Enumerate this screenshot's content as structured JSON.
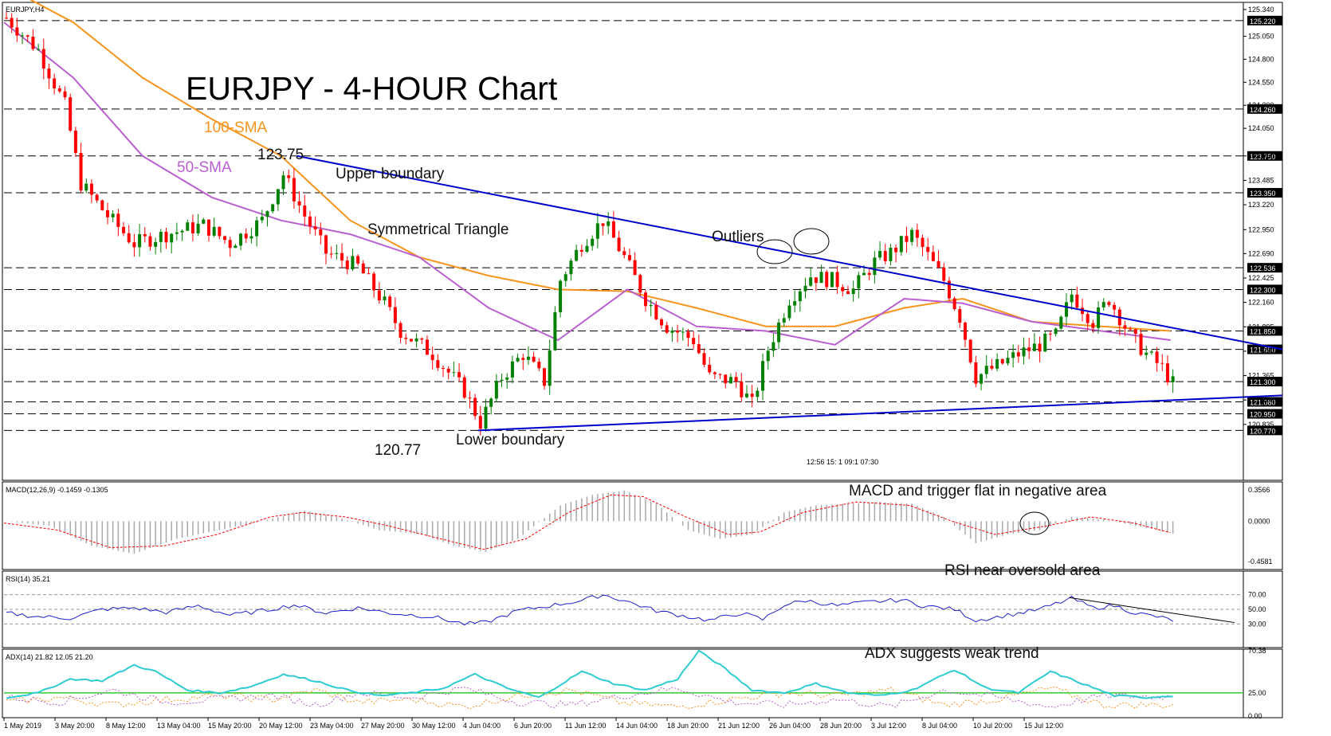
{
  "chart_data": {
    "type": "candlestick",
    "symbol_label": "EURJPY,H4",
    "title": "EURJPY - 4-HOUR Chart",
    "price_axis": {
      "ylim": [
        120.6,
        125.4
      ],
      "ticks": [
        "125.340",
        "125.050",
        "124.800",
        "124.550",
        "124.300",
        "124.050",
        "123.750",
        "123.485",
        "123.220",
        "122.950",
        "122.690",
        "122.425",
        "122.160",
        "121.895",
        "121.630",
        "121.365",
        "121.100",
        "120.835"
      ],
      "levels": [
        125.22,
        124.26,
        123.75,
        123.35,
        122.536,
        122.3,
        121.85,
        121.65,
        121.3,
        121.08,
        120.95,
        120.77
      ],
      "level_labels": [
        "125.220",
        "124.260",
        "123.750",
        "123.350",
        "122.536",
        "122.300",
        "121.850",
        "121.650",
        "121.300",
        "121.080",
        "120.950",
        "120.770"
      ]
    },
    "x_labels": [
      "1 May 2019",
      "3 May 20:00",
      "8 May 12:00",
      "13 May 04:00",
      "15 May 20:00",
      "20 May 12:00",
      "23 May 04:00",
      "27 May 20:00",
      "30 May 12:00",
      "4 Jun 04:00",
      "6 Jun 20:00",
      "11 Jun 12:00",
      "14 Jun 04:00",
      "18 Jun 20:00",
      "21 Jun 12:00",
      "26 Jun 04:00",
      "28 Jun 20:00",
      "3 Jul 12:00",
      "8 Jul 04:00",
      "10 Jul 20:00",
      "15 Jul 12:00"
    ],
    "price_path": [
      [
        0,
        125.25
      ],
      [
        6,
        124.9
      ],
      [
        11,
        124.3
      ],
      [
        14,
        123.45
      ],
      [
        19,
        123.1
      ],
      [
        24,
        122.8
      ],
      [
        30,
        122.9
      ],
      [
        37,
        123.0
      ],
      [
        42,
        122.8
      ],
      [
        48,
        123.05
      ],
      [
        52,
        123.55
      ],
      [
        56,
        123.1
      ],
      [
        60,
        122.7
      ],
      [
        66,
        122.55
      ],
      [
        71,
        122.15
      ],
      [
        74,
        121.85
      ],
      [
        80,
        121.6
      ],
      [
        86,
        121.2
      ],
      [
        89,
        120.85
      ],
      [
        93,
        121.35
      ],
      [
        97,
        121.6
      ],
      [
        101,
        121.3
      ],
      [
        104,
        122.4
      ],
      [
        108,
        122.8
      ],
      [
        112,
        123.05
      ],
      [
        116,
        122.65
      ],
      [
        120,
        122.2
      ],
      [
        124,
        121.9
      ],
      [
        129,
        121.75
      ],
      [
        132,
        121.35
      ],
      [
        137,
        121.3
      ],
      [
        140,
        121.05
      ],
      [
        143,
        121.65
      ],
      [
        147,
        122.2
      ],
      [
        151,
        122.45
      ],
      [
        155,
        122.4
      ],
      [
        159,
        122.3
      ],
      [
        163,
        122.6
      ],
      [
        166,
        122.7
      ],
      [
        170,
        122.9
      ],
      [
        172,
        122.75
      ],
      [
        176,
        122.4
      ],
      [
        179,
        122.0
      ],
      [
        182,
        121.35
      ],
      [
        187,
        121.5
      ],
      [
        190,
        121.6
      ],
      [
        194,
        121.7
      ],
      [
        197,
        121.8
      ],
      [
        200,
        122.25
      ],
      [
        204,
        121.95
      ],
      [
        207,
        122.2
      ],
      [
        211,
        121.8
      ],
      [
        214,
        121.6
      ],
      [
        217,
        121.45
      ],
      [
        219,
        121.28
      ]
    ],
    "trendlines": {
      "upper_boundary": {
        "from": [
          55,
          123.75
        ],
        "to": [
          240,
          121.65
        ]
      },
      "lower_boundary": {
        "from": [
          89,
          120.77
        ],
        "to": [
          240,
          121.15
        ]
      }
    },
    "moving_averages": {
      "sma100": [
        [
          0,
          125.6
        ],
        [
          13,
          125.2
        ],
        [
          26,
          124.6
        ],
        [
          39,
          124.15
        ],
        [
          52,
          123.75
        ],
        [
          65,
          123.05
        ],
        [
          78,
          122.65
        ],
        [
          91,
          122.45
        ],
        [
          104,
          122.3
        ],
        [
          117,
          122.28
        ],
        [
          130,
          122.1
        ],
        [
          143,
          121.9
        ],
        [
          156,
          121.9
        ],
        [
          169,
          122.1
        ],
        [
          180,
          122.2
        ],
        [
          193,
          121.95
        ],
        [
          206,
          121.9
        ],
        [
          219,
          121.85
        ]
      ],
      "sma50": [
        [
          0,
          125.2
        ],
        [
          13,
          124.6
        ],
        [
          26,
          123.75
        ],
        [
          39,
          123.3
        ],
        [
          52,
          123.05
        ],
        [
          65,
          122.9
        ],
        [
          78,
          122.65
        ],
        [
          91,
          122.1
        ],
        [
          104,
          121.75
        ],
        [
          117,
          122.3
        ],
        [
          130,
          121.9
        ],
        [
          143,
          121.85
        ],
        [
          156,
          121.7
        ],
        [
          169,
          122.2
        ],
        [
          180,
          122.15
        ],
        [
          193,
          121.95
        ],
        [
          206,
          121.85
        ],
        [
          219,
          121.75
        ]
      ]
    },
    "macd": {
      "label": "MACD(12,26,9) -0.1459 -0.1305",
      "ticks": [
        "0.3566",
        "0.0000",
        "-0.4581"
      ],
      "histogram": [
        [
          0,
          0.0
        ],
        [
          8,
          -0.05
        ],
        [
          16,
          -0.28
        ],
        [
          24,
          -0.37
        ],
        [
          32,
          -0.2
        ],
        [
          40,
          -0.1
        ],
        [
          48,
          0.0
        ],
        [
          56,
          0.12
        ],
        [
          62,
          0.05
        ],
        [
          70,
          -0.1
        ],
        [
          78,
          -0.15
        ],
        [
          84,
          -0.28
        ],
        [
          90,
          -0.35
        ],
        [
          96,
          -0.2
        ],
        [
          104,
          0.18
        ],
        [
          110,
          0.3
        ],
        [
          116,
          0.35
        ],
        [
          122,
          0.2
        ],
        [
          128,
          -0.1
        ],
        [
          134,
          -0.2
        ],
        [
          140,
          -0.15
        ],
        [
          146,
          0.1
        ],
        [
          152,
          0.18
        ],
        [
          158,
          0.2
        ],
        [
          164,
          0.22
        ],
        [
          170,
          0.2
        ],
        [
          176,
          0.05
        ],
        [
          182,
          -0.25
        ],
        [
          188,
          -0.15
        ],
        [
          194,
          -0.1
        ],
        [
          200,
          0.05
        ],
        [
          206,
          0.02
        ],
        [
          212,
          -0.05
        ],
        [
          219,
          -0.14
        ]
      ],
      "signal": [
        [
          0,
          -0.02
        ],
        [
          10,
          -0.1
        ],
        [
          20,
          -0.3
        ],
        [
          30,
          -0.28
        ],
        [
          40,
          -0.15
        ],
        [
          50,
          0.05
        ],
        [
          56,
          0.1
        ],
        [
          64,
          0.05
        ],
        [
          72,
          -0.05
        ],
        [
          82,
          -0.2
        ],
        [
          90,
          -0.32
        ],
        [
          98,
          -0.2
        ],
        [
          106,
          0.1
        ],
        [
          114,
          0.3
        ],
        [
          120,
          0.28
        ],
        [
          128,
          0.05
        ],
        [
          136,
          -0.15
        ],
        [
          142,
          -0.12
        ],
        [
          150,
          0.1
        ],
        [
          160,
          0.22
        ],
        [
          170,
          0.18
        ],
        [
          178,
          0.0
        ],
        [
          186,
          -0.15
        ],
        [
          196,
          -0.05
        ],
        [
          204,
          0.05
        ],
        [
          212,
          -0.02
        ],
        [
          219,
          -0.13
        ]
      ]
    },
    "rsi": {
      "label": "RSI(14) 35.21",
      "ticks": [
        "70.00",
        "50.00",
        "30.00"
      ],
      "levels": [
        70,
        50,
        30
      ],
      "values": [
        [
          0,
          45
        ],
        [
          6,
          40
        ],
        [
          12,
          38
        ],
        [
          18,
          50
        ],
        [
          24,
          52
        ],
        [
          30,
          46
        ],
        [
          36,
          55
        ],
        [
          42,
          42
        ],
        [
          48,
          48
        ],
        [
          54,
          56
        ],
        [
          60,
          45
        ],
        [
          66,
          52
        ],
        [
          72,
          45
        ],
        [
          80,
          40
        ],
        [
          86,
          30
        ],
        [
          90,
          32
        ],
        [
          96,
          48
        ],
        [
          102,
          55
        ],
        [
          108,
          62
        ],
        [
          112,
          70
        ],
        [
          116,
          62
        ],
        [
          122,
          48
        ],
        [
          128,
          40
        ],
        [
          132,
          35
        ],
        [
          138,
          45
        ],
        [
          142,
          36
        ],
        [
          146,
          56
        ],
        [
          150,
          62
        ],
        [
          156,
          55
        ],
        [
          162,
          60
        ],
        [
          168,
          63
        ],
        [
          172,
          55
        ],
        [
          178,
          50
        ],
        [
          182,
          35
        ],
        [
          188,
          42
        ],
        [
          194,
          50
        ],
        [
          200,
          65
        ],
        [
          204,
          52
        ],
        [
          208,
          55
        ],
        [
          212,
          45
        ],
        [
          216,
          40
        ],
        [
          219,
          35
        ]
      ],
      "trend_from": [
        200,
        66
      ],
      "trend_to": [
        231,
        32
      ]
    },
    "adx": {
      "label": "ADX(14) 21.82 12.05 21.20",
      "ticks": [
        "70.38",
        "25.00",
        "0.00"
      ],
      "level": 25,
      "adx": [
        [
          0,
          20
        ],
        [
          6,
          25
        ],
        [
          12,
          40
        ],
        [
          18,
          38
        ],
        [
          24,
          55
        ],
        [
          28,
          48
        ],
        [
          34,
          28
        ],
        [
          40,
          25
        ],
        [
          46,
          32
        ],
        [
          52,
          45
        ],
        [
          58,
          38
        ],
        [
          64,
          28
        ],
        [
          70,
          22
        ],
        [
          76,
          25
        ],
        [
          82,
          30
        ],
        [
          88,
          45
        ],
        [
          94,
          30
        ],
        [
          100,
          20
        ],
        [
          108,
          48
        ],
        [
          114,
          35
        ],
        [
          120,
          28
        ],
        [
          126,
          40
        ],
        [
          130,
          70
        ],
        [
          134,
          55
        ],
        [
          140,
          28
        ],
        [
          146,
          25
        ],
        [
          152,
          35
        ],
        [
          158,
          25
        ],
        [
          164,
          22
        ],
        [
          170,
          28
        ],
        [
          178,
          50
        ],
        [
          184,
          30
        ],
        [
          190,
          25
        ],
        [
          196,
          48
        ],
        [
          202,
          35
        ],
        [
          208,
          22
        ],
        [
          214,
          20
        ],
        [
          219,
          22
        ]
      ],
      "plus_di": [
        [
          0,
          15
        ],
        [
          10,
          20
        ],
        [
          20,
          12
        ],
        [
          30,
          18
        ],
        [
          40,
          22
        ],
        [
          50,
          18
        ],
        [
          58,
          28
        ],
        [
          66,
          15
        ],
        [
          76,
          18
        ],
        [
          86,
          10
        ],
        [
          96,
          22
        ],
        [
          106,
          28
        ],
        [
          116,
          14
        ],
        [
          126,
          10
        ],
        [
          136,
          18
        ],
        [
          146,
          25
        ],
        [
          156,
          22
        ],
        [
          166,
          28
        ],
        [
          176,
          12
        ],
        [
          186,
          18
        ],
        [
          196,
          30
        ],
        [
          206,
          12
        ],
        [
          214,
          12
        ],
        [
          219,
          12
        ]
      ],
      "minus_di": [
        [
          0,
          20
        ],
        [
          10,
          15
        ],
        [
          20,
          28
        ],
        [
          30,
          15
        ],
        [
          40,
          18
        ],
        [
          50,
          22
        ],
        [
          58,
          12
        ],
        [
          66,
          25
        ],
        [
          76,
          20
        ],
        [
          86,
          30
        ],
        [
          96,
          15
        ],
        [
          106,
          12
        ],
        [
          116,
          22
        ],
        [
          126,
          30
        ],
        [
          136,
          15
        ],
        [
          146,
          12
        ],
        [
          156,
          18
        ],
        [
          166,
          10
        ],
        [
          176,
          28
        ],
        [
          186,
          20
        ],
        [
          196,
          10
        ],
        [
          206,
          22
        ],
        [
          214,
          21
        ],
        [
          219,
          21
        ]
      ]
    }
  },
  "annotations": {
    "sma100": "100-SMA",
    "sma50": "50-SMA",
    "high_price": "123.75",
    "upper_boundary": "Upper boundary",
    "triangle": "Symmetrical Triangle",
    "outliers": "Outliers",
    "lower_boundary": "Lower boundary",
    "low_price": "120.77",
    "macd_note": "MACD and trigger flat in negative area",
    "rsi_note": "RSI near oversold area",
    "adx_note": "ADX suggests weak trend",
    "time_marks": "12:56 15: 1 09:1 07:30"
  },
  "colors": {
    "candle_up": "#008000",
    "candle_down": "#ff0000",
    "sma100": "#f7941d",
    "sma50": "#b95fd0",
    "trendline": "#0000cc",
    "rsi_line": "#1e1ec8",
    "adx_main": "#2ecbd2",
    "adx_level": "#33cc33",
    "macd_signal": "#ff0000",
    "macd_hist": "#a9a9a9"
  }
}
